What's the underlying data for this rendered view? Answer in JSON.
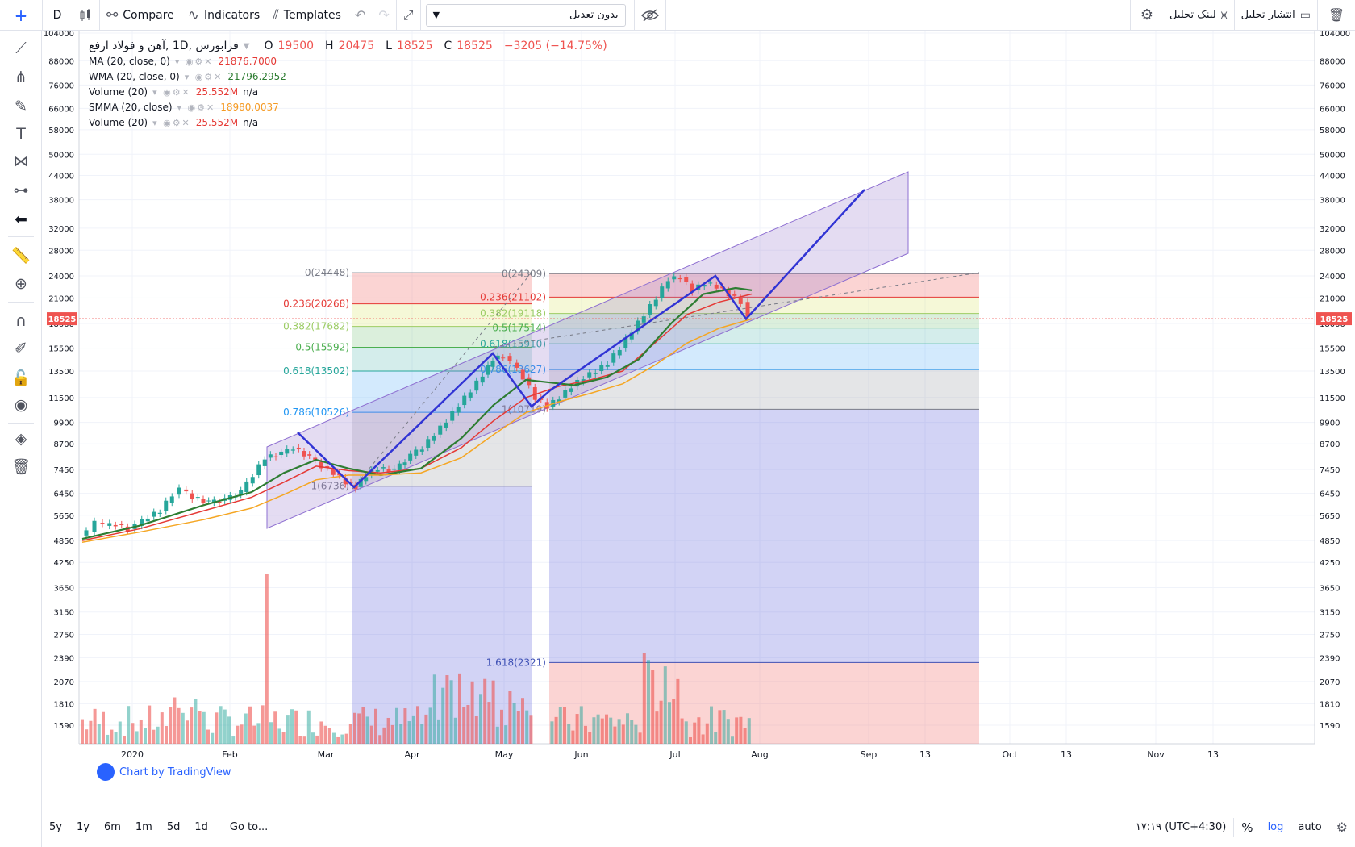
{
  "toolbar": {
    "interval": "D",
    "compare": "Compare",
    "indicators": "Indicators",
    "templates": "Templates",
    "symbol_search": "بدون تعدیل",
    "link": "لینک تحلیل",
    "publish": "انتشار تحلیل"
  },
  "legend": {
    "symbol_title": "فرابورس ,1D ,آهن و فولاد ارفع",
    "o_label": "O",
    "o": "19500",
    "h_label": "H",
    "h": "20475",
    "l_label": "L",
    "l": "18525",
    "c_label": "C",
    "c": "18525",
    "change": "−3205 (−14.75%)",
    "studies": [
      {
        "name": "MA (20, close, 0)",
        "value": "21876.7000",
        "extra": "",
        "color": "#e53935"
      },
      {
        "name": "WMA (20, close, 0)",
        "value": "21796.2952",
        "extra": "",
        "color": "#2e7d32"
      },
      {
        "name": "Volume (20)",
        "value": "25.552M",
        "extra": "n/a",
        "color": "#e53935"
      },
      {
        "name": "SMMA (20, close)",
        "value": "18980.0037",
        "extra": "",
        "color": "#f59a23"
      },
      {
        "name": "Volume (20)",
        "value": "25.552M",
        "extra": "n/a",
        "color": "#e53935"
      }
    ]
  },
  "price_axis": {
    "labels": [
      "104000",
      "88000",
      "76000",
      "66000",
      "58000",
      "50000",
      "44000",
      "38000",
      "32000",
      "28000",
      "24000",
      "21000",
      "18000",
      "15500",
      "13500",
      "11500",
      "9900",
      "8700",
      "7450",
      "6450",
      "5650",
      "4850",
      "4250",
      "3650",
      "3150",
      "2750",
      "2390",
      "2070",
      "1810",
      "1590"
    ],
    "last_price": "18525",
    "scale": "log"
  },
  "time_axis": {
    "labels": [
      "2020",
      "Feb",
      "Mar",
      "Apr",
      "May",
      "Jun",
      "Jul",
      "Aug",
      "Sep",
      "13",
      "Oct",
      "13",
      "Nov",
      "13"
    ]
  },
  "fib_left": {
    "levels": [
      {
        "ratio": "0(24448)",
        "color": "#787b86"
      },
      {
        "ratio": "0.236(20268)",
        "color": "#e53935"
      },
      {
        "ratio": "0.382(17682)",
        "color": "#9ccc65"
      },
      {
        "ratio": "0.5(15592)",
        "color": "#4caf50"
      },
      {
        "ratio": "0.618(13502)",
        "color": "#26a69a"
      },
      {
        "ratio": "0.786(10526)",
        "color": "#2196f3"
      },
      {
        "ratio": "1(6736)",
        "color": "#787b86"
      }
    ]
  },
  "fib_right": {
    "levels": [
      {
        "ratio": "0(24309)",
        "color": "#787b86"
      },
      {
        "ratio": "0.236(21102)",
        "color": "#e53935"
      },
      {
        "ratio": "0.382(19118)",
        "color": "#9ccc65"
      },
      {
        "ratio": "0.5(17514)",
        "color": "#4caf50"
      },
      {
        "ratio": "0.618(15910)",
        "color": "#26a69a"
      },
      {
        "ratio": "0.786(13627)",
        "color": "#2196f3"
      },
      {
        "ratio": "1(10719)",
        "color": "#787b86"
      },
      {
        "ratio": "1.618(2321)",
        "color": "#3f51b5"
      }
    ]
  },
  "watermark": "Chart by TradingView",
  "bottom": {
    "ranges": [
      "5y",
      "1y",
      "6m",
      "1m",
      "5d",
      "1d"
    ],
    "goto": "Go to...",
    "time": "۱۷:۱۹ (UTC+4:30)",
    "percent": "%",
    "log": "log",
    "auto": "auto"
  },
  "colors": {
    "up": "#26a69a",
    "down": "#ef5350",
    "drawing": "#3134d4",
    "channel": "#9575cd"
  }
}
